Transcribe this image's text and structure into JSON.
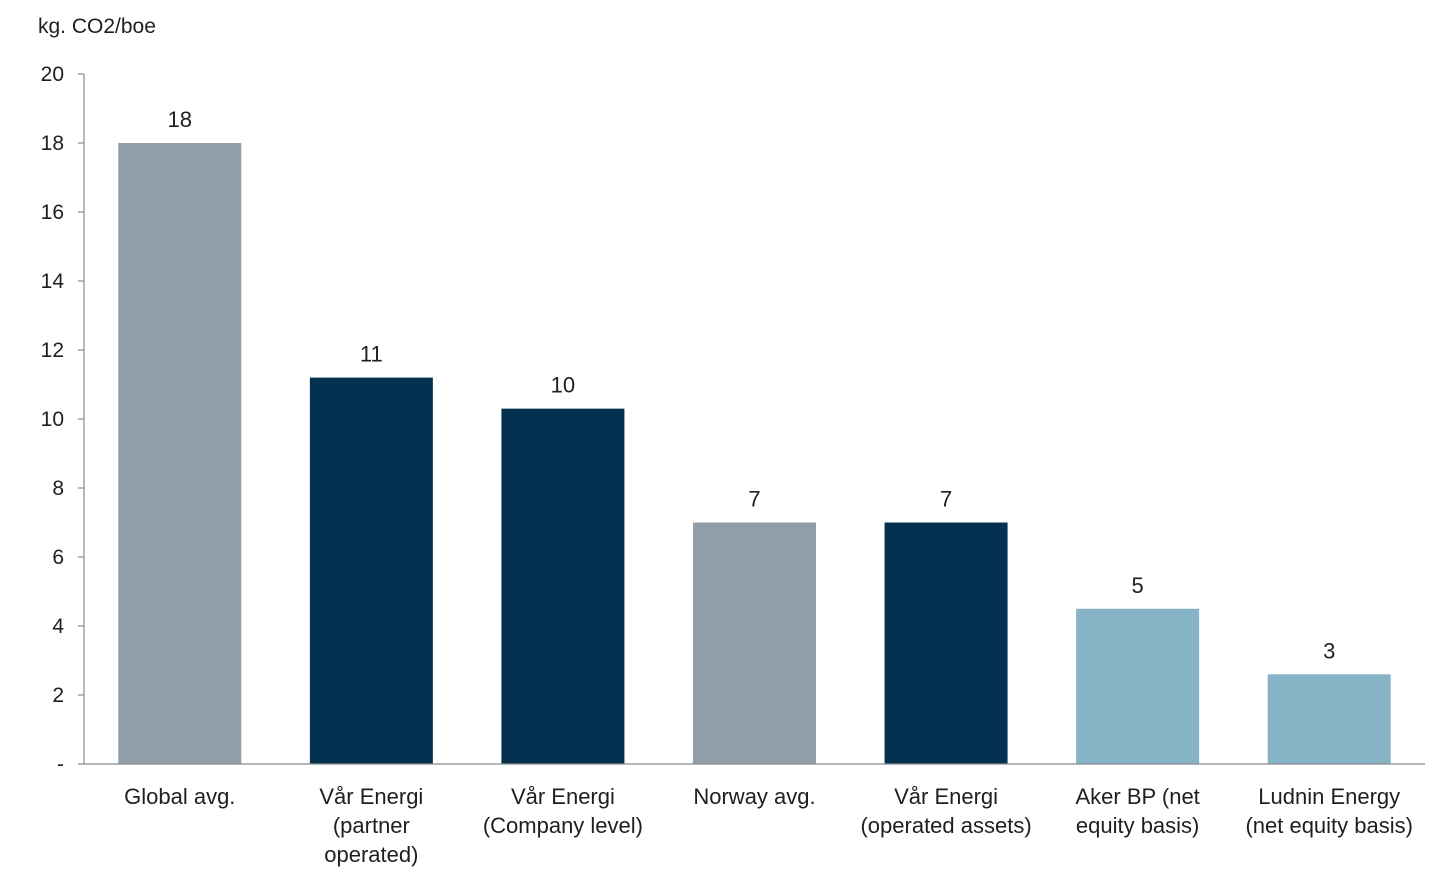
{
  "chart_data": {
    "type": "bar",
    "unit_label": "kg. CO2/boe",
    "ylim": [
      0,
      20
    ],
    "y_ticks": [
      "-",
      "2",
      "4",
      "6",
      "8",
      "10",
      "12",
      "14",
      "16",
      "18",
      "20"
    ],
    "grid": false,
    "categories": [
      [
        "Global avg."
      ],
      [
        "Vår Energi",
        "(partner",
        "operated)"
      ],
      [
        "Vår Energi",
        "(Company level)"
      ],
      [
        "Norway avg."
      ],
      [
        "Vår Energi",
        "(operated assets)"
      ],
      [
        "Aker BP (net",
        "equity basis)"
      ],
      [
        "Ludnin Energy",
        "(net equity basis)"
      ]
    ],
    "values": [
      18,
      11.2,
      10.3,
      7,
      7,
      4.5,
      2.6
    ],
    "data_labels": [
      "18",
      "11",
      "10",
      "7",
      "7",
      "5",
      "3"
    ],
    "colors": [
      "#8f9ea8",
      "#04314f",
      "#04314f",
      "#8f9ea8",
      "#04314f",
      "#86b4c6",
      "#86b4c6"
    ]
  }
}
